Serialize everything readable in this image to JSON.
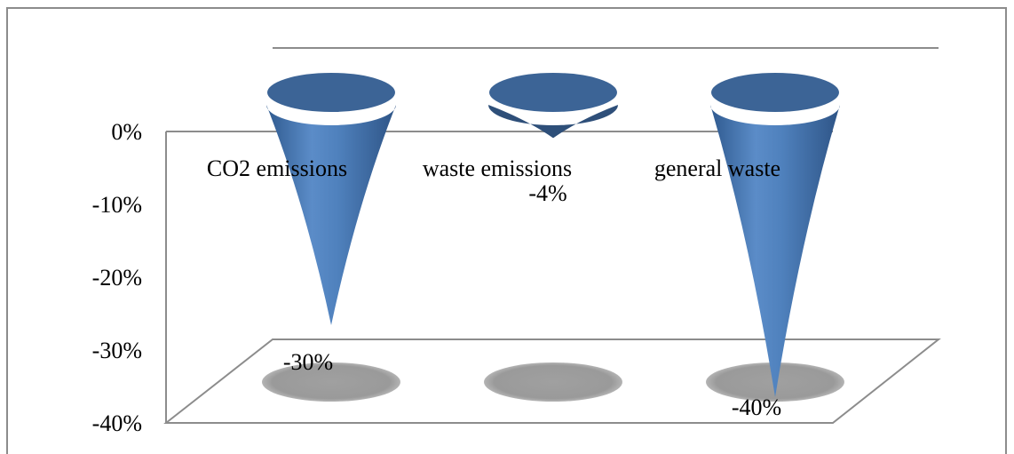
{
  "chart_data": {
    "type": "bar",
    "shape": "cone",
    "style": "3d",
    "categories": [
      "CO2 emissions",
      "waste emissions",
      "general waste"
    ],
    "values": [
      -30,
      -4,
      -40
    ],
    "data_labels": [
      "-30%",
      "-4%",
      "-40%"
    ],
    "ylim": [
      -40,
      0
    ],
    "yticks": [
      0,
      -10,
      -20,
      -30,
      -40
    ],
    "ytick_labels": [
      "0%",
      "-10%",
      "-20%",
      "-30%",
      "-40%"
    ],
    "title": "",
    "xlabel": "",
    "ylabel": "",
    "legend": "none",
    "colors": {
      "cone": "#4f81bd",
      "cone_dark": "#2e4f79",
      "cone_top": "#3c6496",
      "shadow": "#9a9a9a",
      "axis": "#8c8c8c"
    }
  }
}
